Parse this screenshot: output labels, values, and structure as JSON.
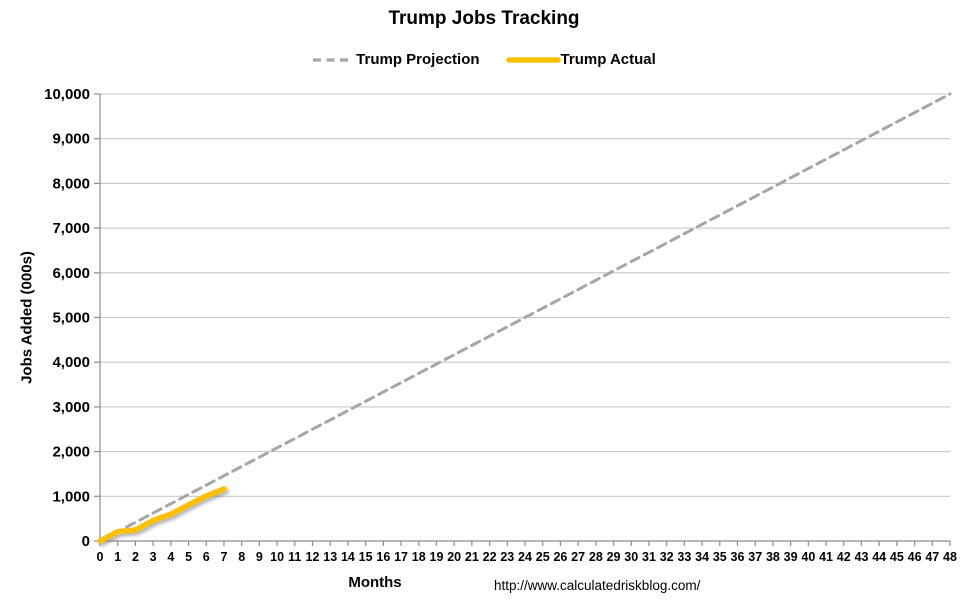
{
  "page": {
    "background": "#ffffff"
  },
  "chart_data": {
    "type": "line",
    "title": "Trump Jobs Tracking",
    "xlabel": "Months",
    "ylabel": "Jobs Added (000s)",
    "xlim": [
      0,
      48
    ],
    "x_tick_step": 1,
    "ylim": [
      0,
      10000
    ],
    "y_tick_step": 1000,
    "grid": "horizontal",
    "legend_position": "top-center",
    "series": [
      {
        "name": "Trump Projection",
        "style": "dashed",
        "color": "#A6A6A6",
        "width": 3,
        "x": [
          0,
          48
        ],
        "values": [
          0,
          10000
        ]
      },
      {
        "name": "Trump Actual",
        "style": "solid",
        "color": "#FFC000",
        "width": 5.5,
        "shadow": true,
        "x": [
          0,
          1,
          2,
          3,
          4,
          5,
          6,
          7
        ],
        "values": [
          0,
          210,
          245,
          460,
          600,
          810,
          1010,
          1165
        ]
      }
    ]
  },
  "footer": {
    "url": "http://www.calculatedriskblog.com/"
  },
  "colors": {
    "grid": "#C9C9C9",
    "axis": "#8C8C8C",
    "tick": "#8C8C8C",
    "text": "#000000"
  }
}
